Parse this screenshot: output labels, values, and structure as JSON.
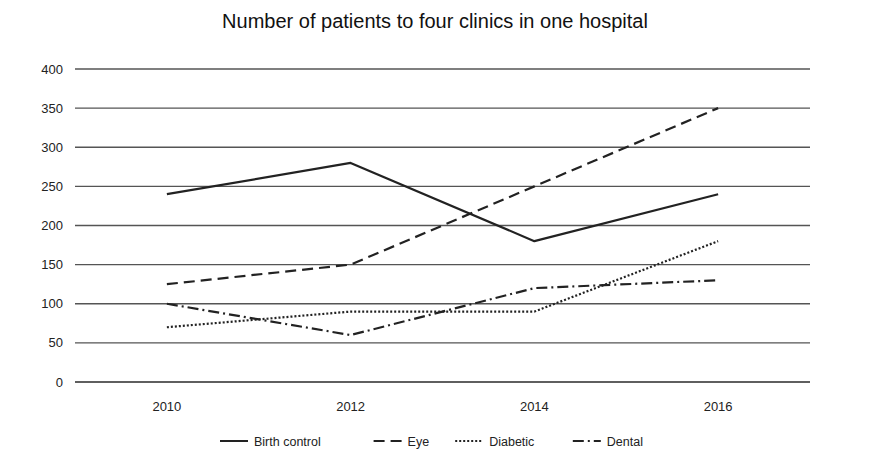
{
  "chart_data": {
    "type": "line",
    "title": "Number of patients to four clinics in one hospital",
    "categories": [
      "2010",
      "2012",
      "2014",
      "2016"
    ],
    "series": [
      {
        "name": "Birth control",
        "color": "#222222",
        "line_style": "solid",
        "values": [
          240,
          280,
          180,
          240
        ]
      },
      {
        "name": "Eye",
        "color": "#222222",
        "line_style": "dashed",
        "values": [
          125,
          150,
          250,
          350
        ]
      },
      {
        "name": "Diabetic",
        "color": "#222222",
        "line_style": "dotted",
        "values": [
          70,
          90,
          90,
          180
        ]
      },
      {
        "name": "Dental",
        "color": "#222222",
        "line_style": "dashdot",
        "values": [
          100,
          60,
          120,
          130
        ]
      }
    ],
    "ylim": [
      0,
      400
    ],
    "yticks": [
      0,
      50,
      100,
      150,
      200,
      250,
      300,
      350,
      400
    ],
    "grid": true,
    "legend": "bottom"
  }
}
